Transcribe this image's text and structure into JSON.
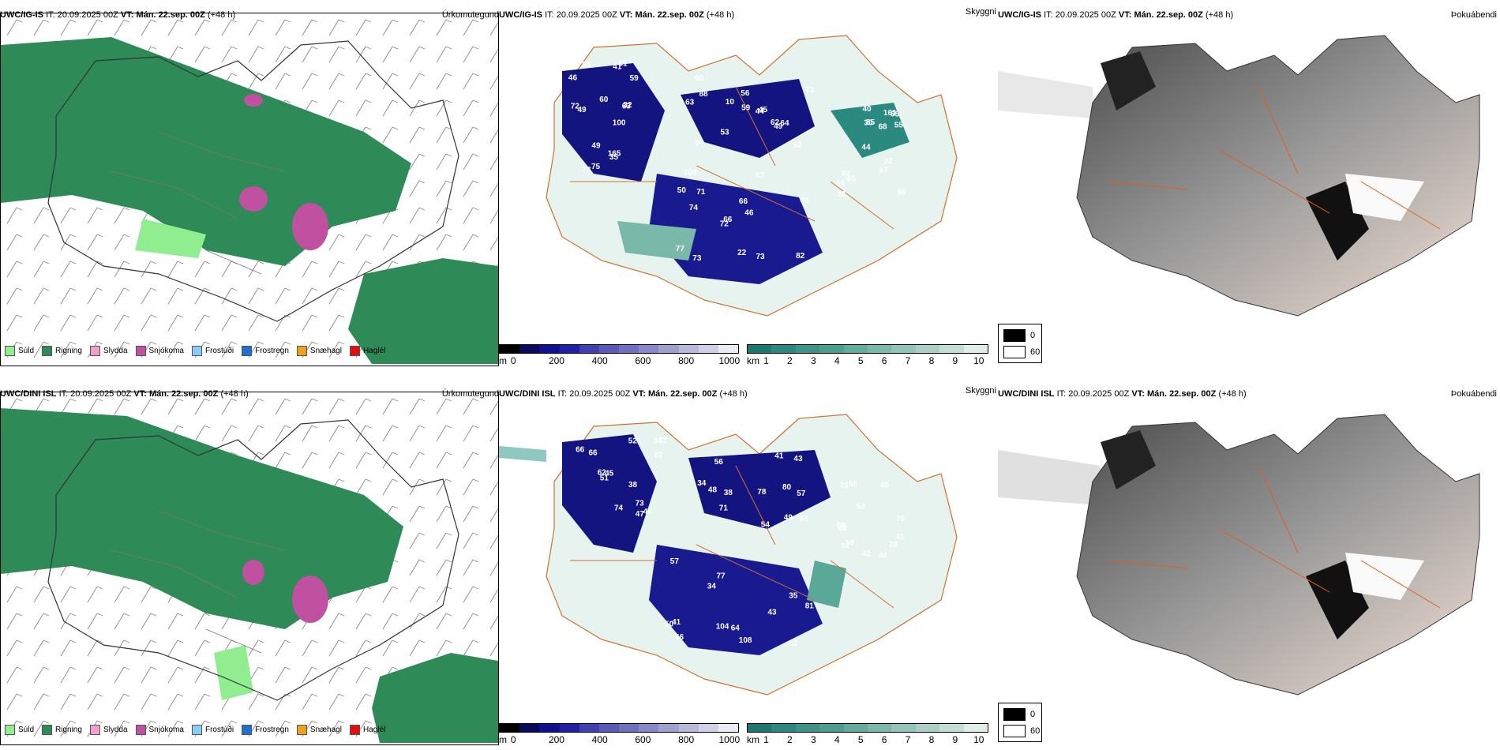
{
  "rows": [
    {
      "precip": {
        "model": "UWC/IG-IS",
        "it_label": "IT:",
        "it_value": "20.09.2025 00Z",
        "vt_label": "VT:",
        "vt_value": "Mán. 22.sep. 00Z",
        "lead": "(+48 h)",
        "right_label": "Úrkomutegund"
      },
      "cloud": {
        "model": "UWC/IG-IS",
        "it_label": "IT:",
        "it_value": "20.09.2025 00Z",
        "vt_label": "VT:",
        "vt_value": "Mán. 22.sep. 00Z",
        "lead": "(+48 h)",
        "right_label": "Skyggni",
        "numbers": [
          "100",
          "88",
          "66",
          "51",
          "63",
          "53",
          "62",
          "85",
          "59",
          "44",
          "104",
          "66",
          "49",
          "73",
          "72",
          "68",
          "78",
          "56",
          "66",
          "92",
          "60",
          "34",
          "73",
          "30",
          "32",
          "64",
          "50",
          "40",
          "72",
          "62",
          "48",
          "44",
          "165",
          "59",
          "71",
          "161",
          "49",
          "52",
          "82",
          "32",
          "61",
          "10",
          "74",
          "67",
          "75",
          "63",
          "46",
          "39",
          "35",
          "45",
          "77",
          "55",
          "46",
          "49",
          "73",
          "65",
          "88",
          "50",
          "22",
          "65",
          "41"
        ]
      },
      "fog": {
        "model": "UWC/IG-IS",
        "it_label": "IT:",
        "it_value": "20.09.2025 00Z",
        "vt_label": "VT:",
        "vt_value": "Mán. 22.sep. 00Z",
        "lead": "(+48 h)",
        "right_label": "Þokuábendi"
      }
    },
    {
      "precip": {
        "model": "UWC/DINI ISL",
        "it_label": "IT:",
        "it_value": "20.09.2025 00Z",
        "vt_label": "VT:",
        "vt_value": "Mán. 22.sep. 00Z",
        "lead": "(+48 h)",
        "right_label": "Úrkomutegund"
      },
      "cloud": {
        "model": "UWC/DINI ISL",
        "it_label": "IT:",
        "it_value": "20.09.2025 00Z",
        "vt_label": "VT:",
        "vt_value": "Mán. 22.sep. 00Z",
        "lead": "(+48 h)",
        "right_label": "Skyggni",
        "numbers": [
          "73",
          "57",
          "46",
          "58",
          "45",
          "49",
          "41",
          "46",
          "62",
          "54",
          "57",
          "69",
          "66",
          "61",
          "104",
          "70",
          "74",
          "78",
          "77",
          "38",
          "32",
          "43",
          "34",
          "41",
          "52",
          "56",
          "43",
          "44",
          "66",
          "80",
          "108",
          "44",
          "51",
          "38",
          "35",
          "28",
          "47",
          "48",
          "64",
          "61",
          "62",
          "41",
          "52",
          "42",
          "46",
          "71",
          "50",
          "73",
          "38",
          "34",
          "81",
          "53",
          "34"
        ]
      },
      "fog": {
        "model": "UWC/DINI ISL",
        "it_label": "IT:",
        "it_value": "20.09.2025 00Z",
        "vt_label": "VT:",
        "vt_value": "Mán. 22.sep. 00Z",
        "lead": "(+48 h)",
        "right_label": "Þokuábendi"
      }
    }
  ],
  "precip_legend": [
    {
      "label": "Súld",
      "color": "#90ee90"
    },
    {
      "label": "Rigning",
      "color": "#2e8b57"
    },
    {
      "label": "Slydda",
      "color": "#f0a0d0"
    },
    {
      "label": "Snjókoma",
      "color": "#c050a0"
    },
    {
      "label": "Frostúði",
      "color": "#87cefa"
    },
    {
      "label": "Frostregn",
      "color": "#1e6fd0"
    },
    {
      "label": "Snæhagl",
      "color": "#f0a020"
    },
    {
      "label": "Haglél",
      "color": "#e01010"
    }
  ],
  "ceiling_bar": {
    "unit": "m",
    "ticks": [
      "0",
      "200",
      "400",
      "600",
      "800",
      "1000"
    ],
    "colors": [
      "#000000",
      "#0a0a5a",
      "#101090",
      "#2020a8",
      "#4040b0",
      "#5a5ab8",
      "#7070c0",
      "#8888c8",
      "#a0a0d0",
      "#b8b8dc",
      "#d0d0e8",
      "#ececf6"
    ]
  },
  "visibility_bar": {
    "unit": "km",
    "ticks": [
      "1",
      "2",
      "3",
      "4",
      "5",
      "6",
      "7",
      "8",
      "9",
      "10"
    ],
    "colors": [
      "#1a7a70",
      "#2a8a80",
      "#3a9488",
      "#4aa090",
      "#62ac9c",
      "#7ab8aa",
      "#92c4b8",
      "#aad0c6",
      "#c4ded6",
      "#e0eee8"
    ]
  },
  "fog_legend": [
    {
      "label": "0",
      "color": "#000000"
    },
    {
      "label": "60",
      "color": "#ffffff"
    }
  ],
  "colors": {
    "rain": "#2e8b57",
    "snow": "#c050a0",
    "drizzle": "#90ee90",
    "cloud_dark": "#141480",
    "fog_land": "#f3e0d4",
    "roads": "#e06020"
  }
}
